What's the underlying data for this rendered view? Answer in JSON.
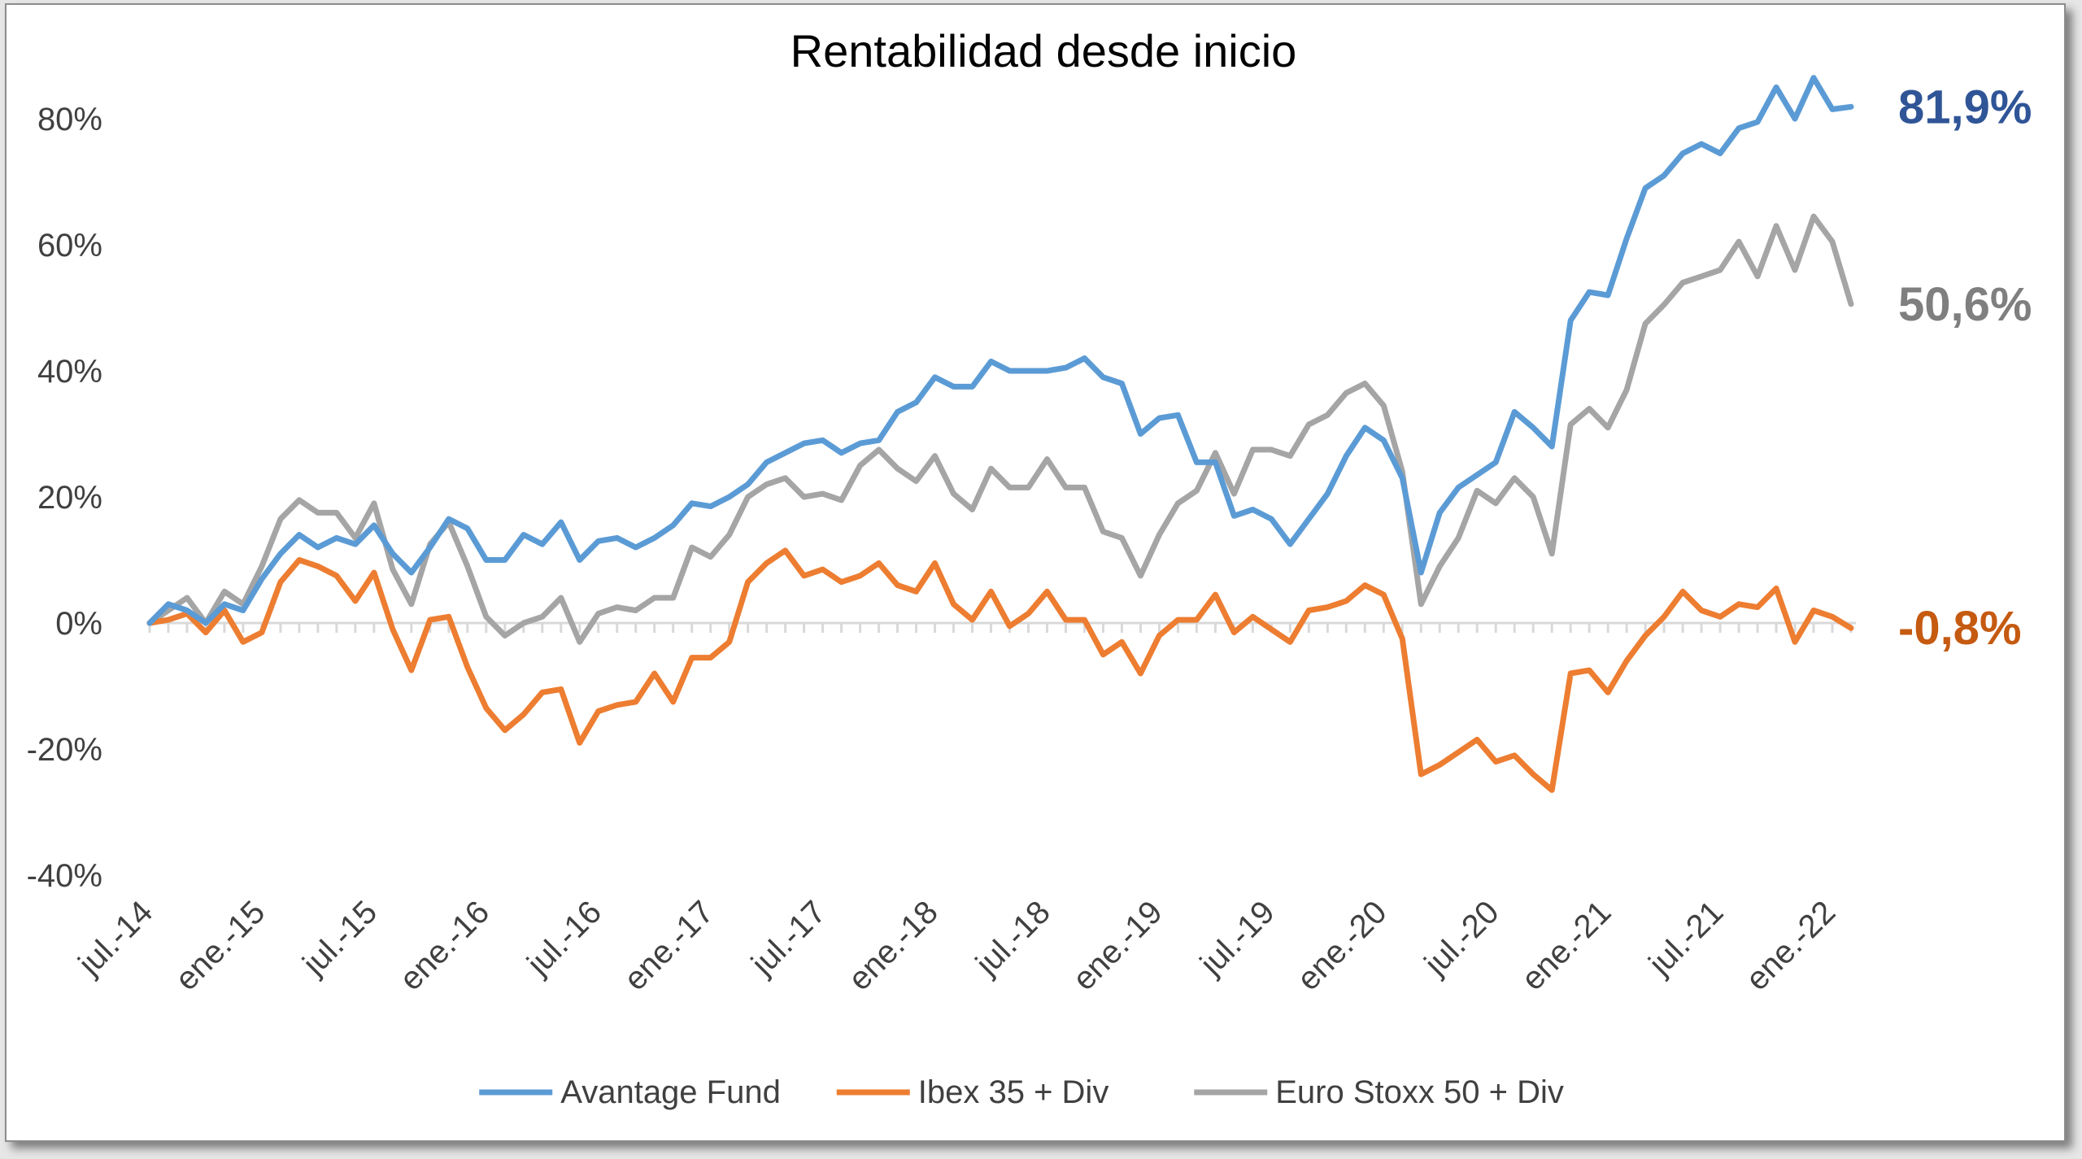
{
  "chart_data": {
    "type": "line",
    "title": "Rentabilidad desde inicio",
    "xlabel": "",
    "ylabel": "",
    "ylim": [
      -40,
      80
    ],
    "y_ticks": [
      -40,
      -20,
      0,
      20,
      40,
      60,
      80
    ],
    "y_tick_labels": [
      "-40%",
      "-20%",
      "0%",
      "20%",
      "40%",
      "60%",
      "80%"
    ],
    "x_tick_labels": [
      "jul.-14",
      "ene.-15",
      "jul.-15",
      "ene.-16",
      "jul.-16",
      "ene.-17",
      "jul.-17",
      "ene.-18",
      "jul.-18",
      "ene.-19",
      "jul.-19",
      "ene.-20",
      "jul.-20",
      "ene.-21",
      "jul.-21",
      "ene.-22"
    ],
    "x_tick_step_months": 6,
    "grid": false,
    "legend_position": "bottom",
    "x_start": "jul.-14",
    "x_end": "mar.-22",
    "series": [
      {
        "name": "Avantage Fund",
        "color": "#5b9bd5",
        "end_label": "81,9%",
        "end_label_color": "#2f5597",
        "values": [
          0,
          3,
          2,
          0,
          3,
          2,
          7,
          11,
          14,
          12,
          13.5,
          12.5,
          15.5,
          11,
          8,
          12,
          16.5,
          15,
          10,
          10,
          14,
          12.5,
          16,
          10,
          13,
          13.5,
          12,
          13.5,
          15.5,
          19,
          18.5,
          20,
          22,
          25.5,
          27,
          28.5,
          29,
          27,
          28.5,
          29,
          33.5,
          35,
          39,
          37.5,
          37.5,
          41.5,
          40,
          40,
          40,
          40.5,
          42,
          39,
          38,
          30,
          32.5,
          33,
          25.5,
          25.5,
          17,
          18,
          16.5,
          12.5,
          16.5,
          20.5,
          26.5,
          31,
          29,
          23,
          8,
          17.5,
          21.5,
          23.5,
          25.5,
          33.5,
          31,
          28,
          48,
          52.5,
          52,
          61,
          69,
          71,
          74.5,
          76,
          74.5,
          78.5,
          79.5,
          85,
          80,
          86.5,
          81.5,
          81.9
        ]
      },
      {
        "name": "Ibex 35 + Div",
        "color": "#ed7d31",
        "end_label": "-0,8%",
        "end_label_color": "#c55a11",
        "values": [
          0,
          0.5,
          1.5,
          -1.5,
          2,
          -3,
          -1.5,
          6.5,
          10,
          9,
          7.5,
          3.5,
          8,
          -1,
          -7.5,
          0.5,
          1,
          -7,
          -13.5,
          -17,
          -14.5,
          -11,
          -10.5,
          -19,
          -14,
          -13,
          -12.5,
          -8,
          -12.5,
          -5.5,
          -5.5,
          -3,
          6.5,
          9.5,
          11.5,
          7.5,
          8.5,
          6.5,
          7.5,
          9.5,
          6,
          5,
          9.5,
          3,
          0.5,
          5,
          -0.5,
          1.5,
          5,
          0.5,
          0.5,
          -5,
          -3,
          -8,
          -2,
          0.5,
          0.5,
          4.5,
          -1.5,
          1,
          -1,
          -3,
          2,
          2.5,
          3.5,
          6,
          4.5,
          -2.5,
          -24,
          -22.5,
          -20.5,
          -18.5,
          -22,
          -21,
          -24,
          -26.5,
          -8,
          -7.5,
          -11,
          -6,
          -2,
          1,
          5,
          2,
          1,
          3,
          2.5,
          5.5,
          -3,
          2,
          1,
          -0.8
        ]
      },
      {
        "name": "Euro Stoxx 50 + Div",
        "color": "#a5a5a5",
        "end_label": "50,6%",
        "end_label_color": "#7f7f7f",
        "values": [
          0,
          2,
          4,
          0,
          5,
          3,
          9,
          16.5,
          19.5,
          17.5,
          17.5,
          13.5,
          19,
          8.5,
          3,
          12.5,
          16,
          9,
          1,
          -2,
          0,
          1,
          4,
          -3,
          1.5,
          2.5,
          2,
          4,
          4,
          12,
          10.5,
          14,
          20,
          22,
          23,
          20,
          20.5,
          19.5,
          25,
          27.5,
          24.5,
          22.5,
          26.5,
          20.5,
          18,
          24.5,
          21.5,
          21.5,
          26,
          21.5,
          21.5,
          14.5,
          13.5,
          7.5,
          14,
          19,
          21,
          27,
          20.5,
          27.5,
          27.5,
          26.5,
          31.5,
          33,
          36.5,
          38,
          34.5,
          24,
          3,
          9,
          13.5,
          21,
          19,
          23,
          20,
          11,
          31.5,
          34,
          31,
          37,
          47.5,
          50.5,
          54,
          55,
          56,
          60.5,
          55,
          63,
          56,
          64.5,
          60.5,
          50.6
        ]
      }
    ]
  }
}
